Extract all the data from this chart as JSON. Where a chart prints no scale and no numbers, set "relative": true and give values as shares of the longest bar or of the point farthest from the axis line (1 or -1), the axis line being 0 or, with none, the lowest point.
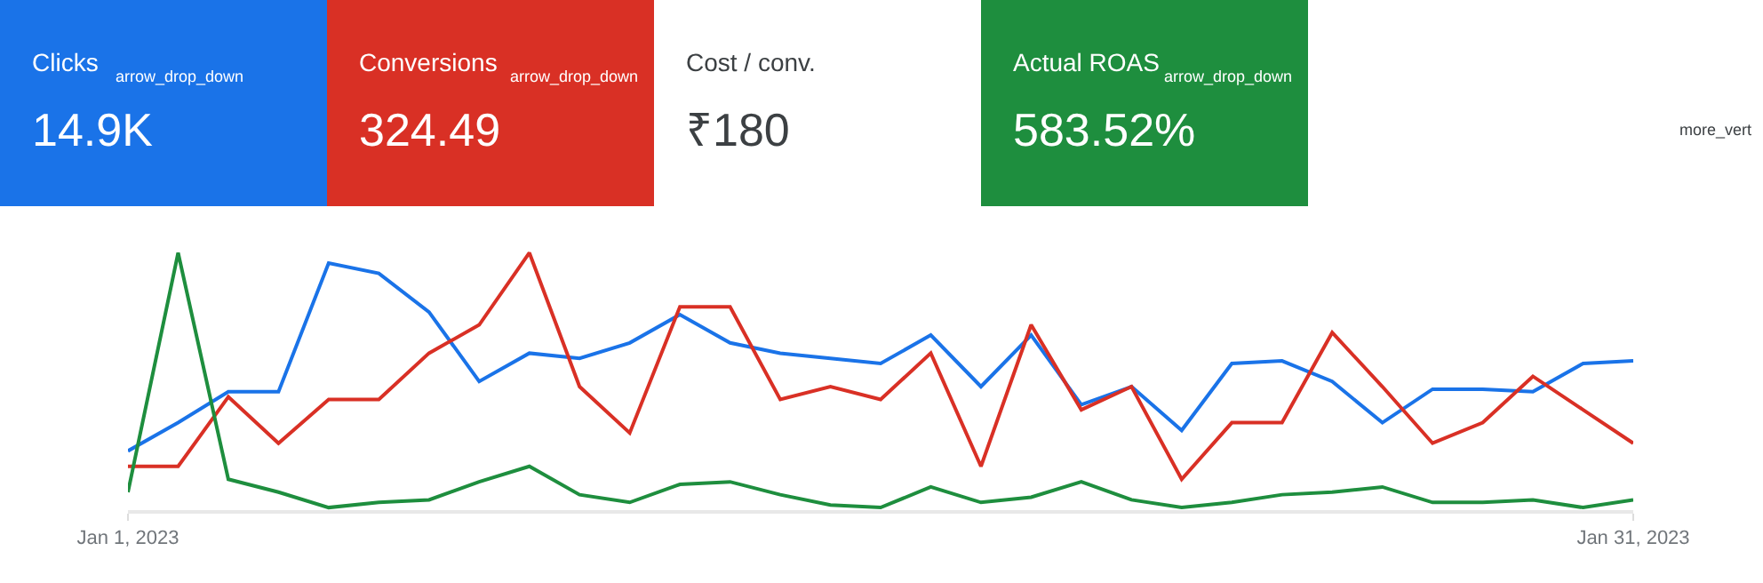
{
  "chart_data": {
    "type": "line",
    "relative": true,
    "legend": false,
    "marker": "none",
    "line_style": "solid",
    "x": [
      "2023-01-01",
      "2023-01-02",
      "2023-01-03",
      "2023-01-04",
      "2023-01-05",
      "2023-01-06",
      "2023-01-07",
      "2023-01-08",
      "2023-01-09",
      "2023-01-10",
      "2023-01-11",
      "2023-01-12",
      "2023-01-13",
      "2023-01-14",
      "2023-01-15",
      "2023-01-16",
      "2023-01-17",
      "2023-01-18",
      "2023-01-19",
      "2023-01-20",
      "2023-01-21",
      "2023-01-22",
      "2023-01-23",
      "2023-01-24",
      "2023-01-25",
      "2023-01-26",
      "2023-01-27",
      "2023-01-28",
      "2023-01-29",
      "2023-01-30",
      "2023-01-31"
    ],
    "xlim": [
      "2023-01-01",
      "2023-01-31"
    ],
    "xticks": [
      {
        "value": "2023-01-01",
        "label": "Jan 1, 2023"
      },
      {
        "value": "2023-01-31",
        "label": "Jan 31, 2023"
      }
    ],
    "series": [
      {
        "color": "#1a73e8",
        "values": [
          0.23,
          0.34,
          0.46,
          0.46,
          0.96,
          0.92,
          0.77,
          0.5,
          0.61,
          0.59,
          0.65,
          0.76,
          0.65,
          0.61,
          0.59,
          0.57,
          0.68,
          0.48,
          0.68,
          0.41,
          0.48,
          0.31,
          0.57,
          0.58,
          0.5,
          0.34,
          0.47,
          0.47,
          0.46,
          0.57,
          0.58
        ]
      },
      {
        "color": "#d93025",
        "values": [
          0.17,
          0.17,
          0.44,
          0.26,
          0.43,
          0.43,
          0.61,
          0.72,
          1,
          0.48,
          0.3,
          0.79,
          0.79,
          0.43,
          0.48,
          0.43,
          0.61,
          0.17,
          0.72,
          0.39,
          0.48,
          0.12,
          0.34,
          0.34,
          0.69,
          0.48,
          0.26,
          0.34,
          0.52,
          0.39,
          0.26
        ]
      },
      {
        "color": "#1e8e3e",
        "values": [
          0.07,
          1,
          0.12,
          0.07,
          0.01,
          0.03,
          0.04,
          0.11,
          0.17,
          0.06,
          0.03,
          0.1,
          0.11,
          0.06,
          0.02,
          0.01,
          0.09,
          0.03,
          0.05,
          0.11,
          0.04,
          0.01,
          0.03,
          0.06,
          0.07,
          0.09,
          0.03,
          0.03,
          0.04,
          0.01,
          0.04
        ]
      }
    ],
    "annotations": [
      "Clicks",
      "Conversions",
      "Actual ROAS",
      "14.9K",
      "324.49",
      "Cost / conv.",
      "₹180",
      "583.52%",
      "arrow_drop_down",
      "arrow_drop_down",
      "arrow_drop_down",
      "more_vert"
    ]
  }
}
